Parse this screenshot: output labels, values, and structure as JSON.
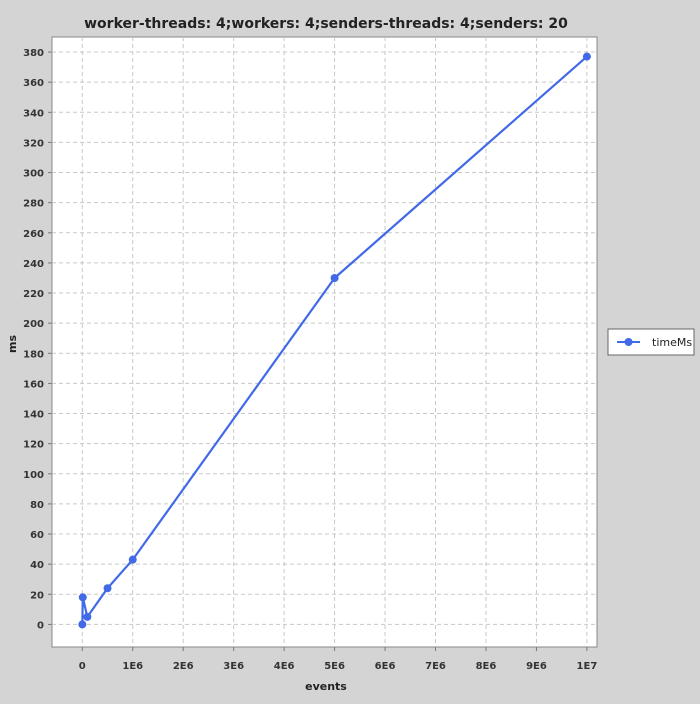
{
  "chart_data": {
    "type": "line",
    "title": "worker-threads: 4;workers: 4;senders-threads: 4;senders: 20",
    "xlabel": "events",
    "ylabel": "ms",
    "xlim": [
      -600000,
      10200000
    ],
    "ylim": [
      -15,
      390
    ],
    "x_ticks": [
      0,
      1000000,
      2000000,
      3000000,
      4000000,
      5000000,
      6000000,
      7000000,
      8000000,
      9000000,
      10000000
    ],
    "x_tick_labels": [
      "0",
      "1E6",
      "2E6",
      "3E6",
      "4E6",
      "5E6",
      "6E6",
      "7E6",
      "8E6",
      "9E6",
      "1E7"
    ],
    "y_ticks": [
      0,
      20,
      40,
      60,
      80,
      100,
      120,
      140,
      160,
      180,
      200,
      220,
      240,
      260,
      280,
      300,
      320,
      340,
      360,
      380
    ],
    "y_tick_labels": [
      "0",
      "20",
      "40",
      "60",
      "80",
      "100",
      "120",
      "140",
      "160",
      "180",
      "200",
      "220",
      "240",
      "260",
      "280",
      "300",
      "320",
      "340",
      "360",
      "380"
    ],
    "grid": true,
    "legend_position": "right",
    "series": [
      {
        "name": "timeMs",
        "color": "#4169e8",
        "points": [
          [
            1000,
            0
          ],
          [
            10000,
            18
          ],
          [
            100000,
            5
          ],
          [
            500000,
            24
          ],
          [
            1000000,
            43
          ],
          [
            5000000,
            230
          ],
          [
            10000000,
            377
          ]
        ]
      }
    ]
  }
}
